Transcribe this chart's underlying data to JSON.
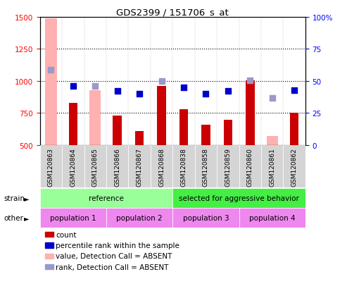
{
  "title": "GDS2399 / 151706_s_at",
  "samples": [
    "GSM120863",
    "GSM120864",
    "GSM120865",
    "GSM120866",
    "GSM120867",
    "GSM120868",
    "GSM120838",
    "GSM120858",
    "GSM120859",
    "GSM120860",
    "GSM120861",
    "GSM120862"
  ],
  "count_values": [
    null,
    830,
    null,
    730,
    610,
    960,
    780,
    660,
    700,
    1005,
    null,
    755
  ],
  "count_absent_values": [
    1490,
    null,
    930,
    null,
    null,
    null,
    null,
    null,
    null,
    null,
    570,
    null
  ],
  "rank_values": [
    null,
    960,
    null,
    920,
    900,
    null,
    950,
    900,
    920,
    null,
    null,
    930
  ],
  "rank_absent_values": [
    1090,
    null,
    960,
    null,
    null,
    1000,
    null,
    null,
    null,
    1005,
    870,
    null
  ],
  "ylim_left": [
    500,
    1500
  ],
  "ylim_right": [
    0,
    100
  ],
  "yticks_left": [
    500,
    750,
    1000,
    1250,
    1500
  ],
  "yticks_right": [
    0,
    25,
    50,
    75,
    100
  ],
  "bar_color_count": "#cc0000",
  "bar_color_absent": "#ffb0b0",
  "dot_color_rank": "#0000cc",
  "dot_color_rank_absent": "#9999cc",
  "strain_ref_color": "#99ff99",
  "strain_agg_color": "#44ee44",
  "other_pop_color": "#ee88ee",
  "strain_ref_label": "reference",
  "strain_agg_label": "selected for aggressive behavior",
  "pop_labels": [
    "population 1",
    "population 2",
    "population 3",
    "population 4"
  ],
  "grid_color": "#000000"
}
